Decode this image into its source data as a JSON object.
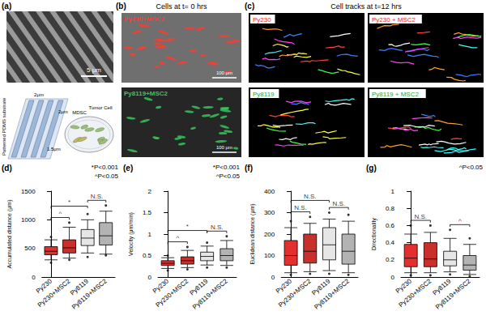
{
  "panels": {
    "a": {
      "label": "(a)",
      "scale_bar": "5 μm",
      "schematic": {
        "substrate": "Patterned PDMS substrate",
        "dims": [
          "2μm",
          "2μm",
          "1.5μm"
        ],
        "cells": [
          "MDSC",
          "Tumor Cell"
        ]
      }
    },
    "b": {
      "label": "(b)",
      "title": "Cells at t= 0 hrs",
      "scale_bar": "100 μm",
      "images": [
        {
          "name": "Py230+MSC2",
          "color": "#ff3b30"
        },
        {
          "name": "Py8119+MSC2",
          "color": "#35c75a"
        }
      ]
    },
    "c": {
      "label": "(c)",
      "title": "Cell tracks at t=12 hrs",
      "images": [
        {
          "name": "Py230",
          "color": "#e8262a"
        },
        {
          "name": "Py230 + MSC2",
          "color": "#e8262a"
        },
        {
          "name": "Py8119",
          "color": "#2e9e3e"
        },
        {
          "name": "Py8119 + MSC2",
          "color": "#2e9e3e"
        }
      ]
    }
  },
  "chart_data": [
    {
      "type": "boxplot",
      "title": "(d)",
      "ylabel": "Accumulated distance (μm)",
      "categories": [
        "Py230",
        "Py230+MSC2",
        "Py8119",
        "Py8119+MSC2"
      ],
      "colors": [
        "#e3302f",
        "#c9302c",
        "#e6e6e6",
        "#b3b3b3"
      ],
      "values": [
        [
          300,
          390,
          450,
          530,
          650
        ],
        [
          330,
          420,
          510,
          650,
          870
        ],
        [
          420,
          550,
          680,
          830,
          1000
        ],
        [
          400,
          560,
          720,
          950,
          1150
        ]
      ],
      "outliers": [
        [
          250,
          700
        ],
        [
          300,
          950
        ],
        [
          350,
          1100
        ],
        [
          380,
          1250
        ]
      ],
      "ylim": [
        0,
        1500
      ],
      "yticks": [
        0,
        500,
        1000,
        1500
      ],
      "grid": false,
      "annotations": [
        "*P<0.001",
        "^P<0.05"
      ],
      "brackets": [
        {
          "from": 0,
          "to": 1,
          "label": "^"
        },
        {
          "from": 0,
          "to": 2,
          "label": "*"
        },
        {
          "from": 2,
          "to": 3,
          "label": "N.S."
        }
      ]
    },
    {
      "type": "boxplot",
      "title": "(e)",
      "ylabel": "Velocity (μm/min)",
      "categories": [
        "Py230",
        "Py230+MSC2",
        "Py8119",
        "Py8119+MSC2"
      ],
      "colors": [
        "#e3302f",
        "#c9302c",
        "#e6e6e6",
        "#b3b3b3"
      ],
      "values": [
        [
          0.2,
          0.27,
          0.32,
          0.38,
          0.45
        ],
        [
          0.22,
          0.3,
          0.38,
          0.47,
          0.62
        ],
        [
          0.28,
          0.38,
          0.48,
          0.58,
          0.72
        ],
        [
          0.27,
          0.38,
          0.5,
          0.66,
          0.85
        ]
      ],
      "outliers": [
        [
          0.15,
          0.5
        ],
        [
          0.18,
          0.7
        ],
        [
          0.22,
          0.8
        ],
        [
          0.22,
          0.95
        ]
      ],
      "ylim": [
        0,
        2
      ],
      "yticks": [
        0,
        0.5,
        1,
        1.5,
        2
      ],
      "grid": false,
      "annotations": [
        "*P<0.001",
        "^P<0.05"
      ],
      "brackets": [
        {
          "from": 0,
          "to": 1,
          "label": "^"
        },
        {
          "from": 0,
          "to": 2,
          "label": "*"
        },
        {
          "from": 2,
          "to": 3,
          "label": "N.S."
        }
      ]
    },
    {
      "type": "boxplot",
      "title": "(f)",
      "ylabel": "Euclidean distance (μm)",
      "categories": [
        "Py230",
        "Py230+MSC2",
        "Py8119",
        "Py8119+MSC2"
      ],
      "colors": [
        "#e3302f",
        "#c9302c",
        "#e6e6e6",
        "#b3b3b3"
      ],
      "values": [
        [
          20,
          55,
          100,
          170,
          230
        ],
        [
          25,
          65,
          120,
          200,
          250
        ],
        [
          30,
          80,
          150,
          230,
          270
        ],
        [
          20,
          60,
          120,
          200,
          260
        ]
      ],
      "outliers": [
        [
          10,
          260
        ],
        [
          15,
          280
        ],
        [
          15,
          300
        ],
        [
          10,
          290
        ]
      ],
      "ylim": [
        0,
        400
      ],
      "yticks": [
        0,
        100,
        200,
        300,
        400
      ],
      "grid": false,
      "annotations": [],
      "brackets": [
        {
          "from": 0,
          "to": 1,
          "label": "N.S."
        },
        {
          "from": 0,
          "to": 2,
          "label": "N.S."
        },
        {
          "from": 2,
          "to": 3,
          "label": "N.S."
        }
      ]
    },
    {
      "type": "boxplot",
      "title": "(g)",
      "ylabel": "Directionality",
      "categories": [
        "Py230",
        "Py230+MSC2",
        "Py8119",
        "Py8119+MSC2"
      ],
      "colors": [
        "#e3302f",
        "#c9302c",
        "#e6e6e6",
        "#b3b3b3"
      ],
      "values": [
        [
          0.05,
          0.12,
          0.22,
          0.38,
          0.5
        ],
        [
          0.05,
          0.12,
          0.21,
          0.4,
          0.52
        ],
        [
          0.06,
          0.13,
          0.2,
          0.3,
          0.45
        ],
        [
          0.03,
          0.08,
          0.14,
          0.25,
          0.38
        ]
      ],
      "outliers": [
        [
          0.02,
          0.6
        ],
        [
          0.02,
          0.6
        ],
        [
          0.03,
          0.55
        ],
        [
          0.01,
          0.45
        ]
      ],
      "ylim": [
        0,
        1
      ],
      "yticks": [
        0,
        0.2,
        0.4,
        0.6,
        0.8,
        1
      ],
      "grid": false,
      "annotations": [
        "^P<0.05"
      ],
      "brackets": [
        {
          "from": 0,
          "to": 1,
          "label": "N.S."
        },
        {
          "from": 2,
          "to": 3,
          "label": "^"
        }
      ]
    }
  ]
}
